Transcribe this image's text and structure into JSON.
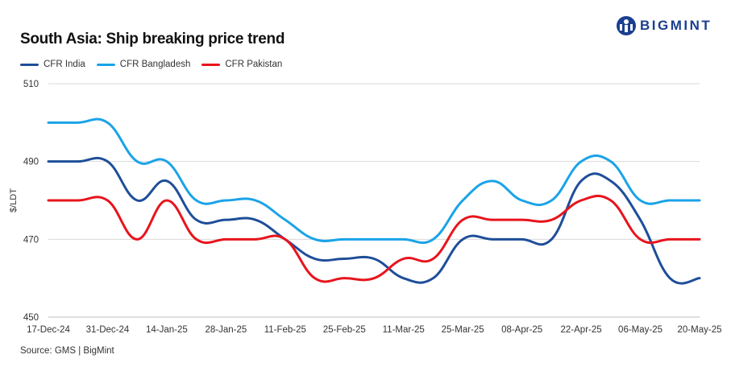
{
  "brand": {
    "name": "BIGMINT",
    "logo_color": "#1b3f8f"
  },
  "chart_data": {
    "type": "line",
    "title": "South Asia: Ship breaking  price trend",
    "xlabel": "",
    "ylabel": "$/LDT",
    "ylim": [
      450,
      510
    ],
    "yticks": [
      450,
      470,
      490,
      510
    ],
    "grid": true,
    "legend_position": "top-left",
    "categories": [
      "17-Dec-24",
      "24-Dec-24",
      "31-Dec-24",
      "07-Jan-25",
      "14-Jan-25",
      "21-Jan-25",
      "28-Jan-25",
      "04-Feb-25",
      "11-Feb-25",
      "18-Feb-25",
      "25-Feb-25",
      "04-Mar-25",
      "11-Mar-25",
      "18-Mar-25",
      "25-Mar-25",
      "01-Apr-25",
      "08-Apr-25",
      "15-Apr-25",
      "22-Apr-25",
      "29-Apr-25",
      "06-May-25",
      "13-May-25",
      "20-May-25"
    ],
    "xtick_labels": [
      "17-Dec-24",
      "31-Dec-24",
      "14-Jan-25",
      "28-Jan-25",
      "11-Feb-25",
      "25-Feb-25",
      "11-Mar-25",
      "25-Mar-25",
      "08-Apr-25",
      "22-Apr-25",
      "06-May-25",
      "20-May-25"
    ],
    "series": [
      {
        "name": "CFR India",
        "color": "#1f4e99",
        "values": [
          490,
          490,
          490,
          480,
          485,
          475,
          475,
          475,
          470,
          465,
          465,
          465,
          460,
          460,
          470,
          470,
          470,
          470,
          485,
          485,
          475,
          460,
          460
        ]
      },
      {
        "name": "CFR Bangladesh",
        "color": "#1aa3e8",
        "values": [
          500,
          500,
          500,
          490,
          490,
          480,
          480,
          480,
          475,
          470,
          470,
          470,
          470,
          470,
          480,
          485,
          480,
          480,
          490,
          490,
          480,
          480,
          480
        ]
      },
      {
        "name": "CFR Pakistan",
        "color": "#e8141c",
        "values": [
          480,
          480,
          480,
          470,
          480,
          470,
          470,
          470,
          470,
          460,
          460,
          460,
          465,
          465,
          475,
          475,
          475,
          475,
          480,
          480,
          470,
          470,
          470
        ]
      }
    ]
  },
  "source": "Source: GMS | BigMint"
}
